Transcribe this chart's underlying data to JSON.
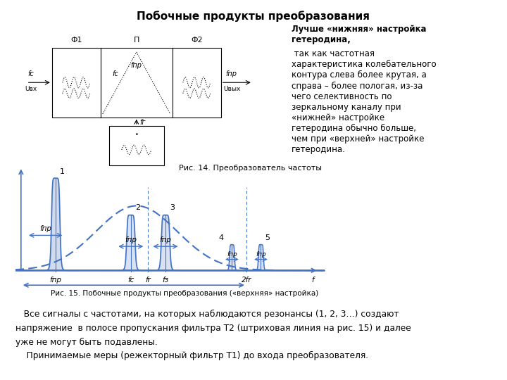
{
  "title": "Побочные продукты преобразования",
  "fig_caption": "Рис. 15. Побочные продукты преобразования («верхняя» настройка)",
  "fig14_caption": "Рис. 14. Преобразователь частоты",
  "right_text_bold": "Лучше «нижняя» настройка\nгетеродина,",
  "right_text_normal": " так как частотная\nхарактеристика колебательного\nконтура слева более крутая, а\nсправа – более пологая, из-за\nчего селективность по\nзеркальному каналу при\n«нижней» настройке\nгетеродина обычно больше,\nчем при «верхней» настройке\nгетеродина.",
  "bottom_text1": "   Все сигналы с частотами, на которых наблюдаются резонансы (1, 2, 3…) создают",
  "bottom_text2": "напряжение  в полосе пропускания фильтра Т2 (штриховая линия на рис. 15) и далее",
  "bottom_text3": "уже не могут быть подавлены.",
  "bottom_text4": "    Принимаемые меры (режекторный фильтр Т1) до входа преобразователя.",
  "main_color": "#4472C4",
  "bg_color": "#FFFFFF"
}
